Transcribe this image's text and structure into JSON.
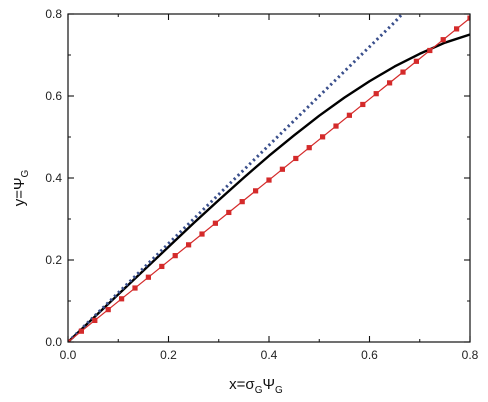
{
  "chart_data": {
    "type": "line",
    "xlim": [
      0,
      0.8
    ],
    "ylim": [
      0,
      0.8
    ],
    "xticks": [
      "0.0",
      "0.2",
      "0.4",
      "0.6",
      "0.8"
    ],
    "yticks": [
      "0.0",
      "0.2",
      "0.4",
      "0.6",
      "0.8"
    ],
    "xlabel": {
      "main": "x=σ",
      "sub1": "G",
      "mid": "Ψ",
      "sub2": "G"
    },
    "ylabel": {
      "main": "y=Ψ",
      "sub": "G"
    },
    "grid": false,
    "legend": "none",
    "series": [
      {
        "style": "solid",
        "color": "#000000",
        "x": [
          0,
          0.05,
          0.1,
          0.15,
          0.2,
          0.25,
          0.3,
          0.35,
          0.4,
          0.45,
          0.5,
          0.55,
          0.6,
          0.65,
          0.7,
          0.75,
          0.8
        ],
        "y": [
          0,
          0.058,
          0.116,
          0.174,
          0.232,
          0.29,
          0.346,
          0.401,
          0.454,
          0.504,
          0.552,
          0.596,
          0.636,
          0.672,
          0.703,
          0.73,
          0.75
        ]
      },
      {
        "style": "dotted",
        "color": "#3a4f8c",
        "x": [
          0,
          0.05,
          0.1,
          0.15,
          0.2,
          0.25,
          0.3,
          0.35,
          0.4,
          0.45,
          0.5,
          0.55,
          0.6,
          0.65,
          0.665
        ],
        "y": [
          0,
          0.06,
          0.12,
          0.18,
          0.24,
          0.3,
          0.36,
          0.42,
          0.48,
          0.54,
          0.6,
          0.66,
          0.72,
          0.78,
          0.8
        ]
      },
      {
        "style": "solid-markers",
        "color": "#d42a2a",
        "x": [
          0,
          0.8
        ],
        "y": [
          0,
          0.79
        ],
        "marker_count": 31
      }
    ]
  }
}
